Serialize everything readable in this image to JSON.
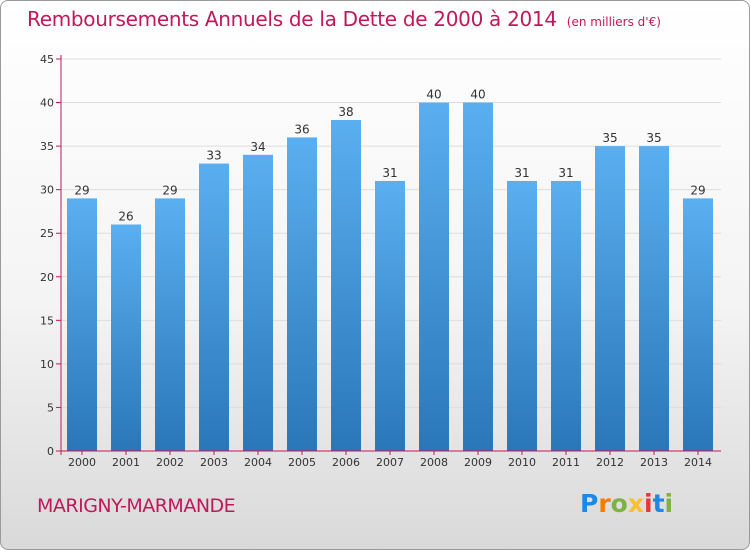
{
  "header": {
    "title": "Remboursements Annuels de la Dette de 2000 à 2014",
    "unit": "(en milliers d'€)"
  },
  "footer": {
    "place": "MARIGNY-MARMANDE",
    "logo_letters": [
      "P",
      "r",
      "o",
      "x",
      "i",
      "t",
      "i"
    ],
    "logo_colors": [
      "#1e88e5",
      "#f57c00",
      "#7cb342",
      "#fbc02d",
      "#e53935",
      "#1e88e5",
      "#7cb342"
    ]
  },
  "colors": {
    "bar_top": "#5aaff0",
    "bar_bottom": "#2a77b8",
    "axis": "#c2185b",
    "grid": "#dddddd"
  },
  "chart_data": {
    "type": "bar",
    "title": "Remboursements Annuels de la Dette de 2000 à 2014",
    "subtitle": "(en milliers d'€)",
    "categories": [
      "2000",
      "2001",
      "2002",
      "2003",
      "2004",
      "2005",
      "2006",
      "2007",
      "2008",
      "2009",
      "2010",
      "2011",
      "2012",
      "2013",
      "2014"
    ],
    "values": [
      29,
      26,
      29,
      33,
      34,
      36,
      38,
      31,
      40,
      40,
      31,
      31,
      35,
      35,
      29
    ],
    "ylim": [
      0,
      45
    ],
    "yticks": [
      0,
      5,
      10,
      15,
      20,
      25,
      30,
      35,
      40,
      45
    ],
    "grid": true,
    "xlabel": "",
    "ylabel": ""
  }
}
